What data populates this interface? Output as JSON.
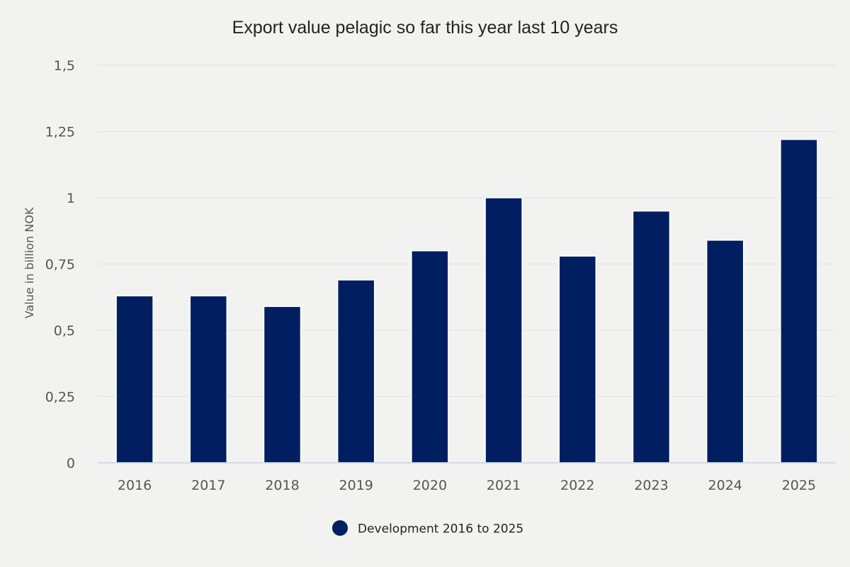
{
  "chart_data": {
    "type": "bar",
    "title": "Export value pelagic so far this year last 10 years",
    "xlabel": "",
    "ylabel": "Value in billion NOK",
    "categories": [
      "2016",
      "2017",
      "2018",
      "2019",
      "2020",
      "2021",
      "2022",
      "2023",
      "2024",
      "2025"
    ],
    "series": [
      {
        "name": "Development 2016 to 2025",
        "values": [
          0.63,
          0.63,
          0.59,
          0.69,
          0.8,
          1.0,
          0.78,
          0.95,
          0.84,
          1.22
        ],
        "color": "#001e60"
      }
    ],
    "ylim": [
      0,
      1.5
    ],
    "yticks": [
      {
        "value": 0,
        "label": "0"
      },
      {
        "value": 0.25,
        "label": "0,25"
      },
      {
        "value": 0.5,
        "label": "0,5"
      },
      {
        "value": 0.75,
        "label": "0,75"
      },
      {
        "value": 1,
        "label": "1"
      },
      {
        "value": 1.25,
        "label": "1,25"
      },
      {
        "value": 1.5,
        "label": "1,5"
      }
    ],
    "grid": true,
    "legend_position": "bottom-center",
    "background_color": "#f2f3f1"
  }
}
